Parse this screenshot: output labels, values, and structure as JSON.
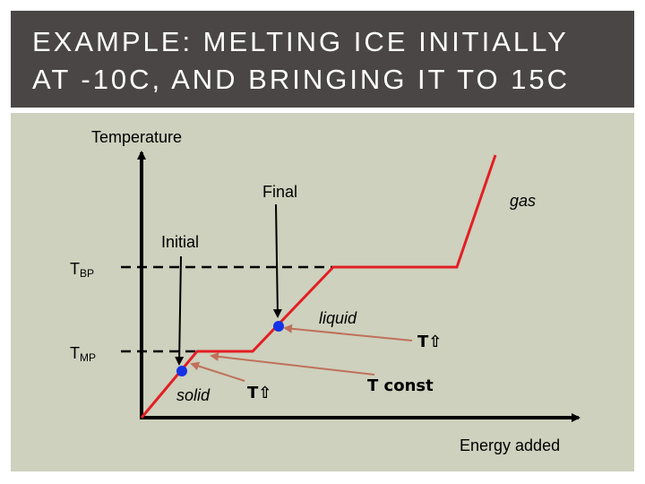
{
  "slide": {
    "title_line1": "EXAMPLE: MELTING ICE INITIALLY",
    "title_line2": "AT -10C, AND BRINGING IT TO 15C"
  },
  "diagram": {
    "y_axis_label": "Temperature",
    "x_axis_label": "Energy added",
    "tbp_main": "T",
    "tbp_sub": "BP",
    "tmp_main": "T",
    "tmp_sub": "MP",
    "label_final": "Final",
    "label_initial": "Initial",
    "label_gas": "gas",
    "label_liquid": "liquid",
    "label_solid": "solid",
    "label_t_up_1": "T⇧",
    "label_t_up_2": "T⇧",
    "label_t_const": "T const"
  },
  "colors": {
    "title_bg": "#4b4646",
    "panel_bg": "#cdd1bd",
    "curve": "#e31e24",
    "marker": "#1533e6",
    "arrow_brown": "#c0705a"
  }
}
